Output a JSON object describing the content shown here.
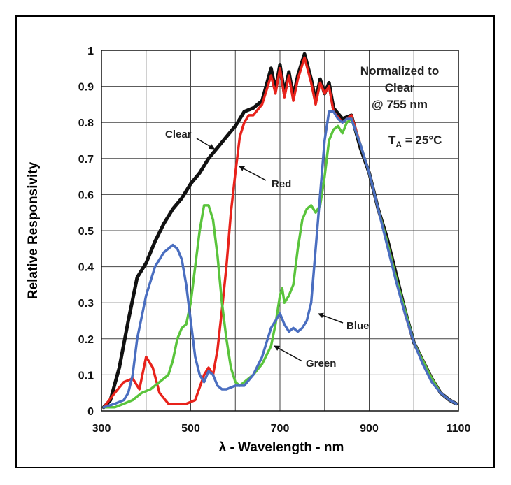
{
  "chart_data": {
    "type": "line",
    "xlabel": "λ - Wavelength - nm",
    "ylabel": "Relative Responsivity",
    "xlim": [
      300,
      1100
    ],
    "ylim": [
      0,
      1
    ],
    "x_ticks": [
      "300",
      "500",
      "700",
      "900",
      "1100"
    ],
    "y_ticks": [
      "0",
      "0.1",
      "0.2",
      "0.3",
      "0.4",
      "0.5",
      "0.6",
      "0.7",
      "0.8",
      "0.9",
      "1"
    ],
    "grid": true,
    "notes": {
      "normalized_line1": "Normalized to",
      "normalized_line2": "Clear",
      "normalized_line3": "@ 755 nm",
      "temp_prefix": "T",
      "temp_sub": "A",
      "temp_suffix": " = 25°C"
    },
    "series": [
      {
        "name": "Clear",
        "color": "#111111",
        "x": [
          305,
          320,
          340,
          360,
          380,
          400,
          420,
          440,
          460,
          480,
          500,
          520,
          540,
          560,
          580,
          600,
          620,
          640,
          660,
          680,
          690,
          700,
          710,
          720,
          730,
          740,
          755,
          770,
          780,
          790,
          800,
          810,
          820,
          840,
          860,
          880,
          900,
          920,
          940,
          960,
          980,
          1000,
          1020,
          1040,
          1060,
          1080,
          1095
        ],
        "y": [
          0.01,
          0.03,
          0.12,
          0.25,
          0.37,
          0.41,
          0.47,
          0.52,
          0.56,
          0.59,
          0.63,
          0.66,
          0.7,
          0.73,
          0.76,
          0.79,
          0.83,
          0.84,
          0.86,
          0.95,
          0.89,
          0.96,
          0.88,
          0.94,
          0.87,
          0.93,
          0.99,
          0.92,
          0.86,
          0.92,
          0.88,
          0.91,
          0.84,
          0.81,
          0.82,
          0.73,
          0.66,
          0.56,
          0.48,
          0.38,
          0.28,
          0.19,
          0.14,
          0.09,
          0.05,
          0.03,
          0.02
        ]
      },
      {
        "name": "Red",
        "color": "#e8221b",
        "x": [
          305,
          330,
          350,
          370,
          385,
          400,
          415,
          430,
          450,
          470,
          490,
          510,
          530,
          540,
          550,
          560,
          570,
          580,
          590,
          600,
          610,
          620,
          630,
          640,
          660,
          680,
          690,
          700,
          710,
          720,
          730,
          740,
          755,
          770,
          780,
          790,
          800,
          810,
          820,
          840,
          860,
          880,
          900,
          920,
          940,
          960,
          980,
          1000,
          1020,
          1040,
          1060,
          1080,
          1095
        ],
        "y": [
          0.01,
          0.05,
          0.08,
          0.09,
          0.06,
          0.15,
          0.12,
          0.05,
          0.02,
          0.02,
          0.02,
          0.03,
          0.1,
          0.12,
          0.1,
          0.17,
          0.28,
          0.4,
          0.55,
          0.66,
          0.76,
          0.8,
          0.82,
          0.82,
          0.85,
          0.93,
          0.88,
          0.95,
          0.87,
          0.93,
          0.86,
          0.92,
          0.98,
          0.91,
          0.85,
          0.91,
          0.88,
          0.9,
          0.83,
          0.8,
          0.82,
          0.74,
          0.66,
          0.56,
          0.47,
          0.37,
          0.27,
          0.19,
          0.14,
          0.09,
          0.05,
          0.03,
          0.02
        ]
      },
      {
        "name": "Green",
        "color": "#5ac43c",
        "x": [
          305,
          330,
          350,
          370,
          390,
          410,
          430,
          450,
          460,
          470,
          480,
          490,
          500,
          510,
          520,
          530,
          540,
          550,
          560,
          570,
          580,
          590,
          600,
          610,
          620,
          640,
          660,
          680,
          690,
          700,
          705,
          710,
          720,
          730,
          740,
          750,
          760,
          770,
          780,
          790,
          800,
          810,
          820,
          830,
          840,
          850,
          860,
          880,
          900,
          920,
          940,
          960,
          980,
          1000,
          1020,
          1040,
          1060,
          1080,
          1095
        ],
        "y": [
          0.01,
          0.01,
          0.02,
          0.03,
          0.05,
          0.06,
          0.08,
          0.1,
          0.14,
          0.2,
          0.23,
          0.24,
          0.3,
          0.4,
          0.5,
          0.57,
          0.57,
          0.53,
          0.43,
          0.3,
          0.2,
          0.12,
          0.08,
          0.07,
          0.08,
          0.1,
          0.13,
          0.18,
          0.24,
          0.32,
          0.34,
          0.3,
          0.32,
          0.35,
          0.45,
          0.53,
          0.56,
          0.57,
          0.55,
          0.57,
          0.65,
          0.75,
          0.78,
          0.79,
          0.77,
          0.8,
          0.81,
          0.74,
          0.66,
          0.56,
          0.47,
          0.37,
          0.28,
          0.19,
          0.14,
          0.09,
          0.05,
          0.03,
          0.02
        ]
      },
      {
        "name": "Blue",
        "color": "#4a6ec0",
        "x": [
          305,
          330,
          350,
          360,
          370,
          380,
          400,
          420,
          440,
          460,
          470,
          480,
          490,
          500,
          510,
          520,
          530,
          540,
          550,
          560,
          570,
          580,
          600,
          620,
          640,
          660,
          680,
          690,
          700,
          710,
          720,
          730,
          740,
          750,
          760,
          770,
          780,
          790,
          800,
          810,
          820,
          830,
          840,
          850,
          860,
          880,
          900,
          920,
          940,
          960,
          980,
          1000,
          1020,
          1040,
          1060,
          1080,
          1095
        ],
        "y": [
          0.01,
          0.02,
          0.03,
          0.05,
          0.1,
          0.2,
          0.32,
          0.4,
          0.44,
          0.46,
          0.45,
          0.42,
          0.35,
          0.25,
          0.15,
          0.1,
          0.08,
          0.11,
          0.1,
          0.07,
          0.06,
          0.06,
          0.07,
          0.07,
          0.1,
          0.15,
          0.23,
          0.25,
          0.27,
          0.24,
          0.22,
          0.23,
          0.22,
          0.23,
          0.25,
          0.3,
          0.45,
          0.6,
          0.75,
          0.83,
          0.83,
          0.81,
          0.8,
          0.81,
          0.81,
          0.74,
          0.66,
          0.56,
          0.46,
          0.36,
          0.27,
          0.19,
          0.13,
          0.08,
          0.05,
          0.03,
          0.02
        ]
      }
    ],
    "annotations": [
      {
        "label": "Clear",
        "series": "Clear"
      },
      {
        "label": "Red",
        "series": "Red"
      },
      {
        "label": "Green",
        "series": "Green"
      },
      {
        "label": "Blue",
        "series": "Blue"
      }
    ]
  }
}
